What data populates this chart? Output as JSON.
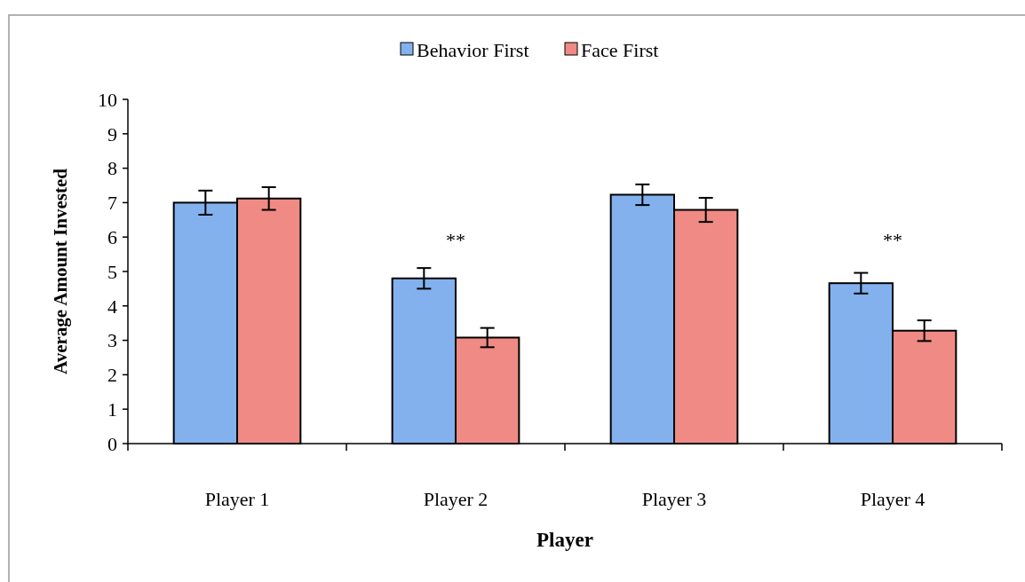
{
  "chart_data": {
    "type": "bar",
    "xlabel": "Player",
    "ylabel": "Average Amount Invested",
    "categories": [
      "Player 1",
      "Player 2",
      "Player 3",
      "Player 4"
    ],
    "series": [
      {
        "name": "Behavior First",
        "color": "#82b1ee",
        "values": [
          7.0,
          4.8,
          7.23,
          4.66
        ],
        "errors": [
          0.35,
          0.3,
          0.3,
          0.3
        ]
      },
      {
        "name": "Face First",
        "color": "#f08a84",
        "values": [
          7.12,
          3.08,
          6.79,
          3.28
        ],
        "errors": [
          0.33,
          0.28,
          0.35,
          0.3
        ]
      }
    ],
    "ylim": [
      0,
      10
    ],
    "yticks": [
      0,
      1,
      2,
      3,
      4,
      5,
      6,
      7,
      8,
      9,
      10
    ],
    "grid": false,
    "legend": "top",
    "annotations": [
      "**",
      "**"
    ]
  }
}
